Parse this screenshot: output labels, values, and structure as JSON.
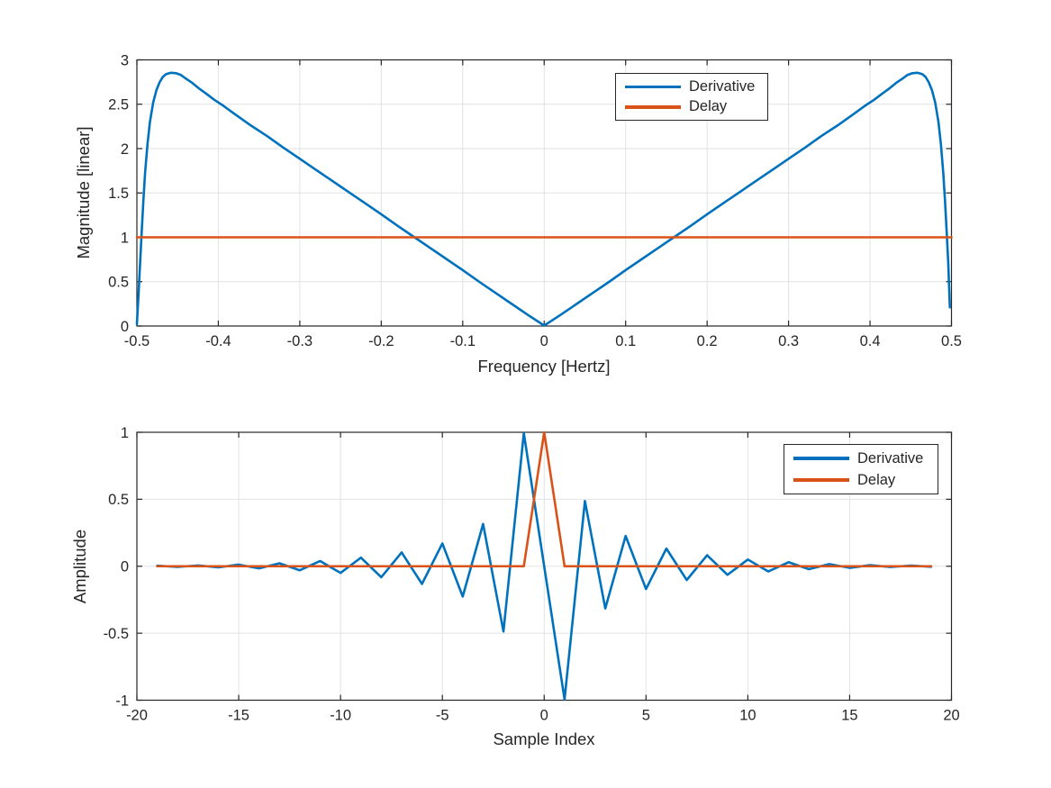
{
  "figure": {
    "background": "#ffffff"
  },
  "colors": {
    "derivative": "#0072BD",
    "delay": "#D95319",
    "axis": "#262626",
    "grid": "#e2e2e2",
    "text": "#262626"
  },
  "chart_data": [
    {
      "type": "line",
      "title": "",
      "xlabel": "Frequency [Hertz]",
      "ylabel": "Magnitude [linear]",
      "xlim": [
        -0.5,
        0.5
      ],
      "ylim": [
        0,
        3
      ],
      "xticks": [
        -0.5,
        -0.4,
        -0.3,
        -0.2,
        -0.1,
        0,
        0.1,
        0.2,
        0.3,
        0.4,
        0.5
      ],
      "xtick_labels": [
        "-0.5",
        "-0.4",
        "-0.3",
        "-0.2",
        "-0.1",
        "0",
        "0.1",
        "0.2",
        "0.3",
        "0.4",
        "0.5"
      ],
      "yticks": [
        0,
        0.5,
        1,
        1.5,
        2,
        2.5,
        3
      ],
      "ytick_labels": [
        "0",
        "0.5",
        "1",
        "1.5",
        "2",
        "2.5",
        "3"
      ],
      "grid": true,
      "legend": {
        "position": "upper-center-right",
        "entries": [
          "Derivative",
          "Delay"
        ]
      },
      "series": [
        {
          "name": "Derivative",
          "color": "#0072BD",
          "points": [
            [
              -0.5,
              0.02
            ],
            [
              -0.498,
              0.35
            ],
            [
              -0.496,
              0.72
            ],
            [
              -0.494,
              1.08
            ],
            [
              -0.492,
              1.42
            ],
            [
              -0.49,
              1.72
            ],
            [
              -0.487,
              2.05
            ],
            [
              -0.484,
              2.3
            ],
            [
              -0.48,
              2.52
            ],
            [
              -0.476,
              2.66
            ],
            [
              -0.472,
              2.75
            ],
            [
              -0.468,
              2.81
            ],
            [
              -0.464,
              2.84
            ],
            [
              -0.458,
              2.855
            ],
            [
              -0.452,
              2.85
            ],
            [
              -0.446,
              2.83
            ],
            [
              -0.44,
              2.79
            ],
            [
              -0.432,
              2.74
            ],
            [
              -0.424,
              2.68
            ],
            [
              -0.415,
              2.62
            ],
            [
              -0.405,
              2.55
            ],
            [
              -0.395,
              2.49
            ],
            [
              -0.38,
              2.39
            ],
            [
              -0.36,
              2.26
            ],
            [
              -0.34,
              2.14
            ],
            [
              -0.32,
              2.01
            ],
            [
              -0.3,
              1.885
            ],
            [
              -0.28,
              1.76
            ],
            [
              -0.26,
              1.635
            ],
            [
              -0.24,
              1.51
            ],
            [
              -0.22,
              1.385
            ],
            [
              -0.2,
              1.26
            ],
            [
              -0.18,
              1.13
            ],
            [
              -0.16,
              1.005
            ],
            [
              -0.14,
              0.88
            ],
            [
              -0.12,
              0.755
            ],
            [
              -0.1,
              0.63
            ],
            [
              -0.08,
              0.5
            ],
            [
              -0.06,
              0.375
            ],
            [
              -0.04,
              0.25
            ],
            [
              -0.02,
              0.125
            ],
            [
              0.0,
              0.005
            ],
            [
              0.02,
              0.125
            ],
            [
              0.04,
              0.25
            ],
            [
              0.06,
              0.375
            ],
            [
              0.08,
              0.5
            ],
            [
              0.1,
              0.63
            ],
            [
              0.12,
              0.755
            ],
            [
              0.14,
              0.88
            ],
            [
              0.16,
              1.005
            ],
            [
              0.18,
              1.13
            ],
            [
              0.2,
              1.26
            ],
            [
              0.22,
              1.385
            ],
            [
              0.24,
              1.51
            ],
            [
              0.26,
              1.635
            ],
            [
              0.28,
              1.76
            ],
            [
              0.3,
              1.885
            ],
            [
              0.32,
              2.01
            ],
            [
              0.34,
              2.14
            ],
            [
              0.36,
              2.26
            ],
            [
              0.38,
              2.39
            ],
            [
              0.395,
              2.49
            ],
            [
              0.405,
              2.55
            ],
            [
              0.415,
              2.62
            ],
            [
              0.424,
              2.68
            ],
            [
              0.432,
              2.74
            ],
            [
              0.44,
              2.79
            ],
            [
              0.446,
              2.83
            ],
            [
              0.452,
              2.85
            ],
            [
              0.458,
              2.855
            ],
            [
              0.464,
              2.84
            ],
            [
              0.468,
              2.81
            ],
            [
              0.472,
              2.75
            ],
            [
              0.476,
              2.66
            ],
            [
              0.48,
              2.52
            ],
            [
              0.484,
              2.3
            ],
            [
              0.487,
              2.05
            ],
            [
              0.49,
              1.72
            ],
            [
              0.492,
              1.42
            ],
            [
              0.494,
              1.08
            ],
            [
              0.496,
              0.72
            ],
            [
              0.498,
              0.21
            ]
          ]
        },
        {
          "name": "Delay",
          "color": "#D95319",
          "points": [
            [
              -0.5,
              1
            ],
            [
              0.5,
              1
            ]
          ]
        }
      ]
    },
    {
      "type": "line",
      "title": "",
      "xlabel": "Sample Index",
      "ylabel": "Amplitude",
      "xlim": [
        -20,
        20
      ],
      "ylim": [
        -1,
        1
      ],
      "xticks": [
        -20,
        -15,
        -10,
        -5,
        0,
        5,
        10,
        15,
        20
      ],
      "xtick_labels": [
        "-20",
        "-15",
        "-10",
        "-5",
        "0",
        "5",
        "10",
        "15",
        "20"
      ],
      "yticks": [
        -1,
        -0.5,
        0,
        0.5,
        1
      ],
      "ytick_labels": [
        "-1",
        "-0.5",
        "0",
        "0.5",
        "1"
      ],
      "grid": true,
      "legend": {
        "position": "upper-right",
        "entries": [
          "Derivative",
          "Delay"
        ]
      },
      "series": [
        {
          "name": "Derivative",
          "color": "#0072BD",
          "points": [
            [
              -19,
              0.004
            ],
            [
              -18,
              -0.005
            ],
            [
              -17,
              0.006
            ],
            [
              -16,
              -0.008
            ],
            [
              -15,
              0.012
            ],
            [
              -14,
              -0.016
            ],
            [
              -13,
              0.022
            ],
            [
              -12,
              -0.03
            ],
            [
              -11,
              0.039
            ],
            [
              -10,
              -0.05
            ],
            [
              -9,
              0.064
            ],
            [
              -8,
              -0.082
            ],
            [
              -7,
              0.103
            ],
            [
              -6,
              -0.132
            ],
            [
              -5,
              0.17
            ],
            [
              -4,
              -0.226
            ],
            [
              -3,
              0.315
            ],
            [
              -2,
              -0.487
            ],
            [
              -1,
              0.994
            ],
            [
              0,
              0
            ],
            [
              1,
              -0.994
            ],
            [
              2,
              0.487
            ],
            [
              3,
              -0.315
            ],
            [
              4,
              0.226
            ],
            [
              5,
              -0.17
            ],
            [
              6,
              0.132
            ],
            [
              7,
              -0.103
            ],
            [
              8,
              0.082
            ],
            [
              9,
              -0.064
            ],
            [
              10,
              0.05
            ],
            [
              11,
              -0.039
            ],
            [
              12,
              0.03
            ],
            [
              13,
              -0.022
            ],
            [
              14,
              0.016
            ],
            [
              15,
              -0.012
            ],
            [
              16,
              0.008
            ],
            [
              17,
              -0.006
            ],
            [
              18,
              0.005
            ],
            [
              19,
              -0.004
            ]
          ]
        },
        {
          "name": "Delay",
          "color": "#D95319",
          "points": [
            [
              -19,
              0
            ],
            [
              -18,
              0
            ],
            [
              -17,
              0
            ],
            [
              -16,
              0
            ],
            [
              -15,
              0
            ],
            [
              -14,
              0
            ],
            [
              -13,
              0
            ],
            [
              -12,
              0
            ],
            [
              -11,
              0
            ],
            [
              -10,
              0
            ],
            [
              -9,
              0
            ],
            [
              -8,
              0
            ],
            [
              -7,
              0
            ],
            [
              -6,
              0
            ],
            [
              -5,
              0
            ],
            [
              -4,
              0
            ],
            [
              -3,
              0
            ],
            [
              -2,
              0
            ],
            [
              -1,
              0
            ],
            [
              0,
              1
            ],
            [
              1,
              0
            ],
            [
              2,
              0
            ],
            [
              3,
              0
            ],
            [
              4,
              0
            ],
            [
              5,
              0
            ],
            [
              6,
              0
            ],
            [
              7,
              0
            ],
            [
              8,
              0
            ],
            [
              9,
              0
            ],
            [
              10,
              0
            ],
            [
              11,
              0
            ],
            [
              12,
              0
            ],
            [
              13,
              0
            ],
            [
              14,
              0
            ],
            [
              15,
              0
            ],
            [
              16,
              0
            ],
            [
              17,
              0
            ],
            [
              18,
              0
            ],
            [
              19,
              0
            ]
          ]
        }
      ]
    }
  ]
}
